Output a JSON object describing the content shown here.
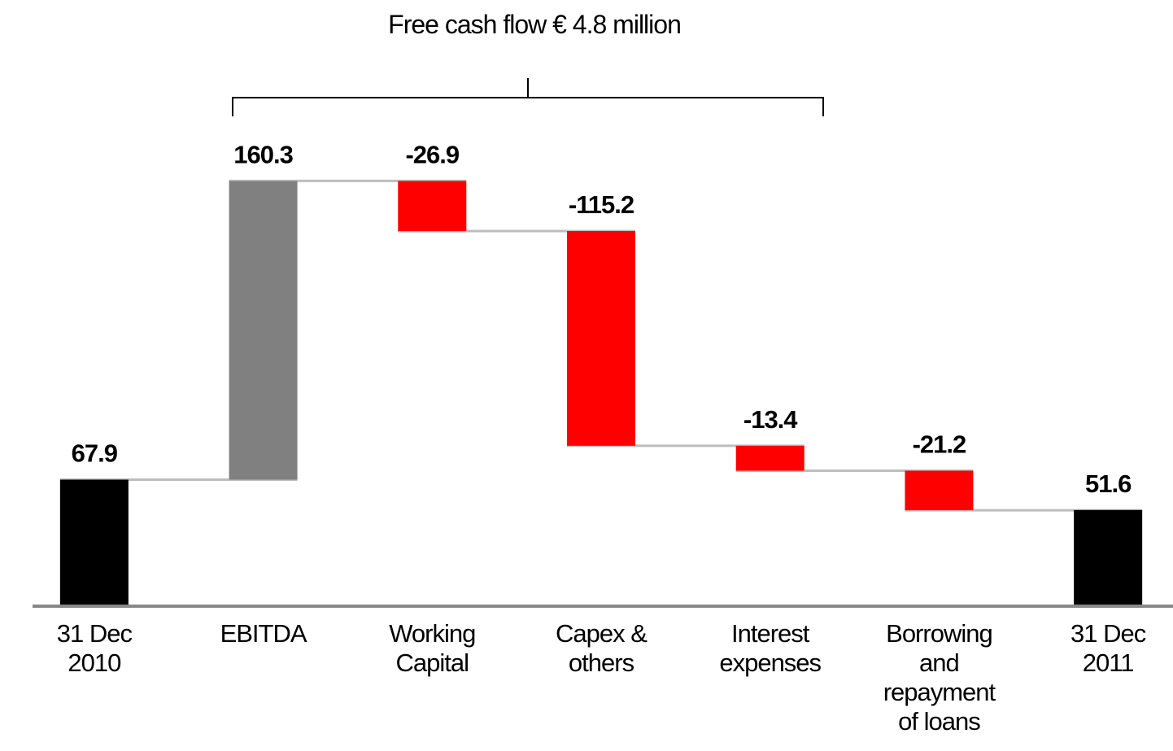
{
  "chart_data": {
    "type": "waterfall",
    "annotation": "Free cash flow € 4.8 million",
    "categories": [
      "31 Dec 2010",
      "EBITDA",
      "Working Capital",
      "Capex & others",
      "Interest expenses",
      "Borrowing and repayment of loans",
      "31 Dec 2011"
    ],
    "values": [
      67.9,
      160.3,
      -26.9,
      -115.2,
      -13.4,
      -21.2,
      51.6
    ],
    "totals": [
      true,
      false,
      false,
      false,
      false,
      false,
      true
    ],
    "colors": {
      "total": "#000000",
      "increase": "#808080",
      "decrease": "#ff0000"
    },
    "ylim": [
      0,
      300
    ]
  }
}
